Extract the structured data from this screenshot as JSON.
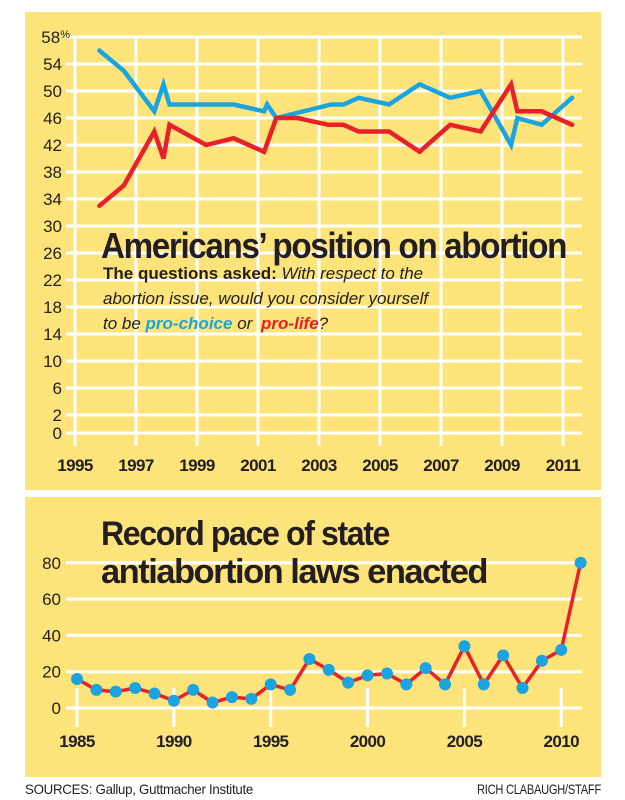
{
  "colors": {
    "panel": "#FDE47A",
    "pro_choice": "#1AA5E0",
    "pro_life": "#E8202A",
    "text": "#231F20",
    "grid": "#FFFFFF"
  },
  "chart_data": [
    {
      "type": "line",
      "title": "Americans’ position on abortion",
      "subtitle": {
        "lead": "The questions asked:",
        "line1": "With respect to the",
        "line2": "abortion issue, would you consider yourself",
        "line3_prefix": "to be",
        "pro_choice": "pro-choice",
        "or": "or",
        "pro_life": "pro-life",
        "end": "?"
      },
      "xlabel": "",
      "ylabel": "",
      "xlim": [
        1995,
        2011.5
      ],
      "ylim": [
        0,
        58
      ],
      "y_ticks": [
        "58%",
        "54",
        "50",
        "46",
        "42",
        "38",
        "34",
        "30",
        "26",
        "22",
        "18",
        "14",
        "10",
        "6",
        "2",
        "0"
      ],
      "y_tick_values": [
        58,
        54,
        50,
        46,
        42,
        38,
        34,
        30,
        26,
        22,
        18,
        14,
        10,
        6,
        2,
        0
      ],
      "x_ticks": [
        "1995",
        "1997",
        "1999",
        "2001",
        "2003",
        "2005",
        "2007",
        "2009",
        "2011"
      ],
      "x_tick_values": [
        1995,
        1997,
        1999,
        2001,
        2003,
        2005,
        2007,
        2009,
        2011
      ],
      "grid": true,
      "legend": "inline-in-subtitle",
      "series": [
        {
          "name": "pro-choice",
          "color": "#1AA5E0",
          "x": [
            1995.8,
            1996.6,
            1997.6,
            1997.9,
            1998.1,
            2000.2,
            2001.2,
            2001.3,
            2001.6,
            2003.4,
            2003.8,
            2004.3,
            2005.3,
            2006.3,
            2007.3,
            2008.3,
            2009.3,
            2009.5,
            2010.3,
            2011.3
          ],
          "y": [
            56,
            53,
            47,
            51,
            48,
            48,
            47,
            48,
            46,
            48,
            48,
            49,
            48,
            51,
            49,
            50,
            42,
            46,
            45,
            49
          ]
        },
        {
          "name": "pro-life",
          "color": "#E8202A",
          "x": [
            1995.8,
            1996.6,
            1997.6,
            1997.9,
            1998.1,
            1999.3,
            2000.2,
            2001.2,
            2001.6,
            2002.3,
            2003.3,
            2003.8,
            2004.3,
            2005.3,
            2006.3,
            2007.3,
            2008.3,
            2009.3,
            2009.5,
            2010.3,
            2011.3
          ],
          "y": [
            33,
            36,
            44,
            40,
            45,
            42,
            43,
            41,
            46,
            46,
            45,
            45,
            44,
            44,
            41,
            45,
            44,
            51,
            47,
            47,
            45
          ]
        }
      ]
    },
    {
      "type": "line",
      "title_line1": "Record pace of state",
      "title_line2": "antiabortion laws enacted",
      "xlabel": "",
      "ylabel": "",
      "xlim": [
        1985,
        2011
      ],
      "ylim": [
        0,
        80
      ],
      "y_ticks": [
        "80",
        "60",
        "40",
        "20",
        "0"
      ],
      "y_tick_values": [
        80,
        60,
        40,
        20,
        0
      ],
      "x_ticks": [
        "1985",
        "1990",
        "1995",
        "2000",
        "2005",
        "2010"
      ],
      "x_tick_values": [
        1985,
        1990,
        1995,
        2000,
        2005,
        2010
      ],
      "grid": true,
      "series": [
        {
          "name": "antiabortion laws enacted",
          "line_color": "#E8202A",
          "marker_color": "#1AA5E0",
          "x": [
            1985,
            1986,
            1987,
            1988,
            1989,
            1990,
            1991,
            1992,
            1993,
            1994,
            1995,
            1996,
            1997,
            1998,
            1999,
            2000,
            2001,
            2002,
            2003,
            2004,
            2005,
            2006,
            2007,
            2008,
            2009,
            2010,
            2011
          ],
          "y": [
            16,
            10,
            9,
            11,
            8,
            4,
            10,
            3,
            6,
            5,
            13,
            10,
            27,
            21,
            14,
            18,
            19,
            13,
            22,
            13,
            34,
            13,
            29,
            11,
            26,
            32,
            80
          ]
        }
      ]
    }
  ],
  "footer": {
    "sources": "SOURCES: Gallup, Guttmacher Institute",
    "credit": "RICH CLABAUGH/STAFF"
  }
}
